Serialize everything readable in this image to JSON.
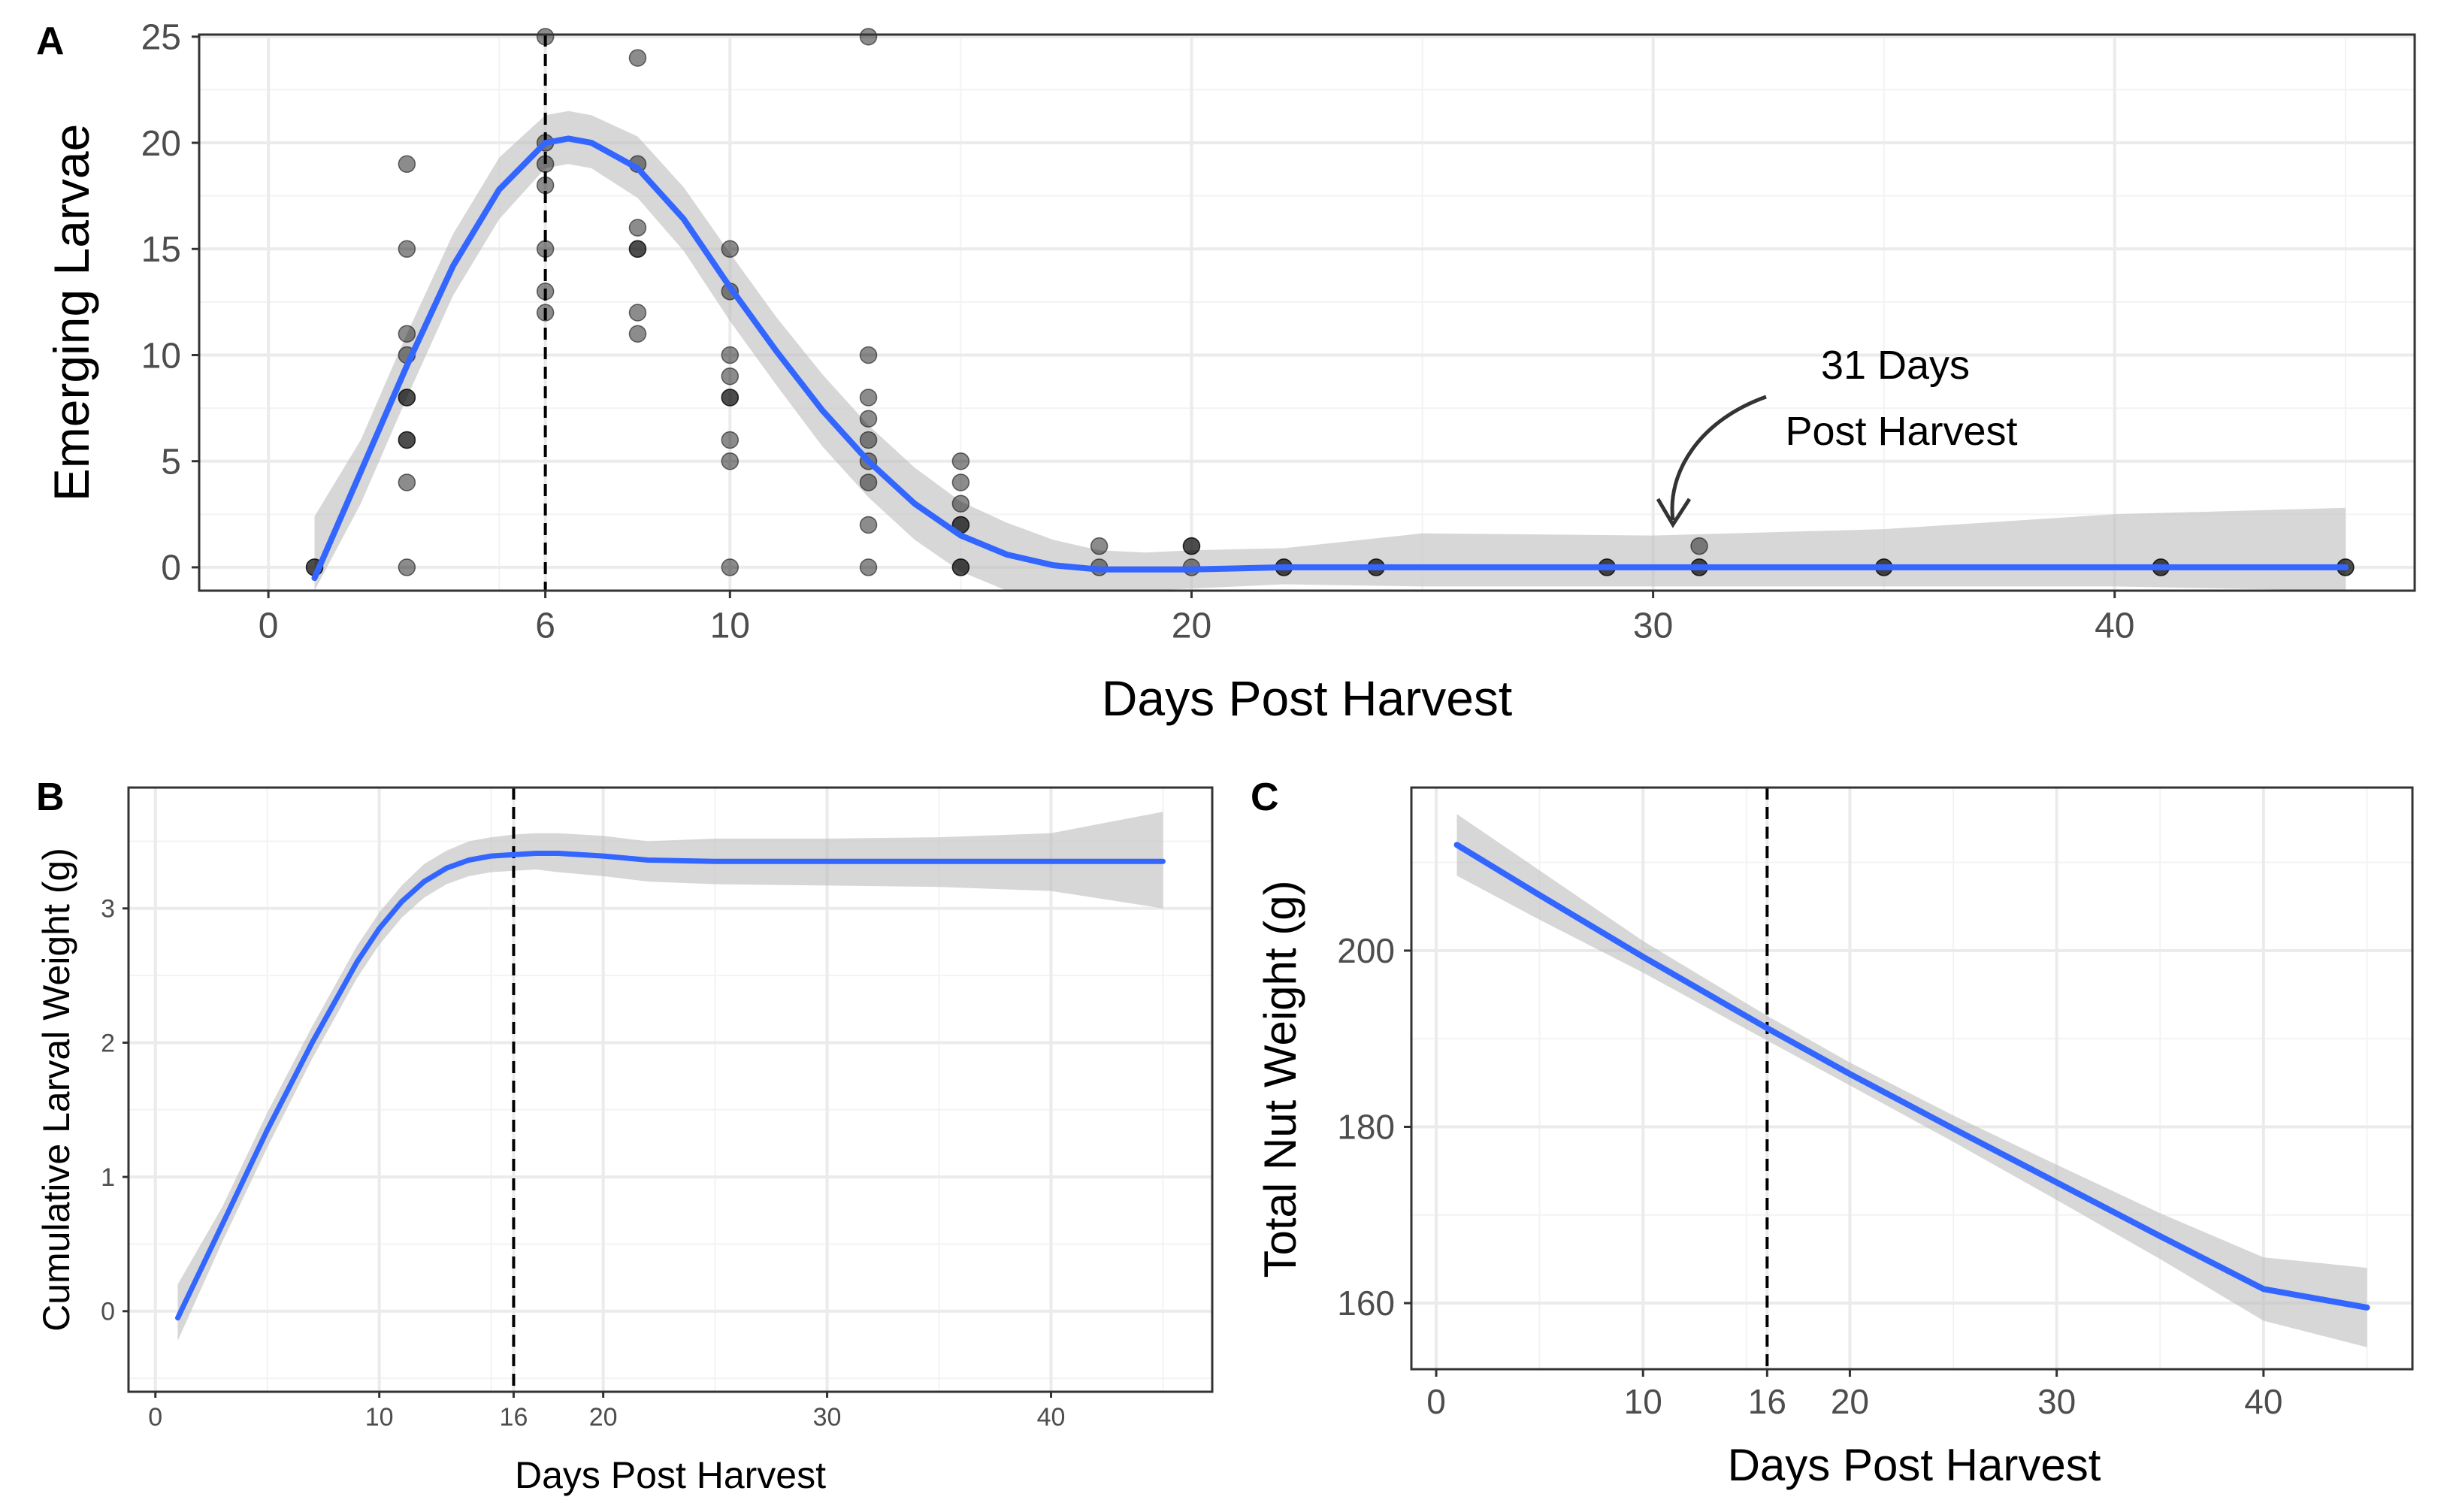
{
  "colors": {
    "smooth": "#3366FF",
    "ribbon": "#BEBEBE",
    "point": "#000000",
    "grid_major": "#EBEBEB",
    "grid_minor": "#F3F3F3",
    "panel_border": "#333333",
    "tick_text": "#4D4D4D"
  },
  "chart_data": [
    {
      "panel": "A",
      "type": "scatter",
      "xlabel": "Days Post Harvest",
      "ylabel": "Emerging Larvae",
      "xlim": [
        -1.5,
        46.5
      ],
      "ylim": [
        -1.1,
        25.1
      ],
      "xticks": [
        0,
        6,
        10,
        20,
        30,
        40
      ],
      "yticks": [
        0,
        5,
        10,
        15,
        20,
        25
      ],
      "vline": 6,
      "points": [
        {
          "x": 1,
          "y": 0
        },
        {
          "x": 1,
          "y": 0
        },
        {
          "x": 3,
          "y": 0
        },
        {
          "x": 3,
          "y": 4
        },
        {
          "x": 3,
          "y": 6
        },
        {
          "x": 3,
          "y": 6
        },
        {
          "x": 3,
          "y": 8
        },
        {
          "x": 3,
          "y": 8
        },
        {
          "x": 3,
          "y": 10
        },
        {
          "x": 3,
          "y": 11
        },
        {
          "x": 3,
          "y": 15
        },
        {
          "x": 3,
          "y": 19
        },
        {
          "x": 6,
          "y": 12
        },
        {
          "x": 6,
          "y": 13
        },
        {
          "x": 6,
          "y": 15
        },
        {
          "x": 6,
          "y": 18
        },
        {
          "x": 6,
          "y": 19
        },
        {
          "x": 6,
          "y": 20
        },
        {
          "x": 6,
          "y": 25
        },
        {
          "x": 8,
          "y": 11
        },
        {
          "x": 8,
          "y": 12
        },
        {
          "x": 8,
          "y": 15
        },
        {
          "x": 8,
          "y": 15
        },
        {
          "x": 8,
          "y": 16
        },
        {
          "x": 8,
          "y": 19
        },
        {
          "x": 8,
          "y": 24
        },
        {
          "x": 10,
          "y": 0
        },
        {
          "x": 10,
          "y": 5
        },
        {
          "x": 10,
          "y": 6
        },
        {
          "x": 10,
          "y": 8
        },
        {
          "x": 10,
          "y": 8
        },
        {
          "x": 10,
          "y": 9
        },
        {
          "x": 10,
          "y": 10
        },
        {
          "x": 10,
          "y": 13
        },
        {
          "x": 10,
          "y": 15
        },
        {
          "x": 13,
          "y": 0
        },
        {
          "x": 13,
          "y": 2
        },
        {
          "x": 13,
          "y": 4
        },
        {
          "x": 13,
          "y": 5
        },
        {
          "x": 13,
          "y": 6
        },
        {
          "x": 13,
          "y": 7
        },
        {
          "x": 13,
          "y": 8
        },
        {
          "x": 13,
          "y": 10
        },
        {
          "x": 13,
          "y": 25
        },
        {
          "x": 15,
          "y": 0
        },
        {
          "x": 15,
          "y": 0
        },
        {
          "x": 15,
          "y": 2
        },
        {
          "x": 15,
          "y": 2
        },
        {
          "x": 15,
          "y": 3
        },
        {
          "x": 15,
          "y": 4
        },
        {
          "x": 15,
          "y": 5
        },
        {
          "x": 18,
          "y": 0
        },
        {
          "x": 18,
          "y": 1
        },
        {
          "x": 20,
          "y": 0
        },
        {
          "x": 20,
          "y": 1
        },
        {
          "x": 20,
          "y": 1
        },
        {
          "x": 22,
          "y": 0
        },
        {
          "x": 22,
          "y": 0
        },
        {
          "x": 24,
          "y": 0
        },
        {
          "x": 24,
          "y": 0
        },
        {
          "x": 29,
          "y": 0
        },
        {
          "x": 29,
          "y": 0
        },
        {
          "x": 31,
          "y": 0
        },
        {
          "x": 31,
          "y": 0
        },
        {
          "x": 31,
          "y": 1
        },
        {
          "x": 35,
          "y": 0
        },
        {
          "x": 35,
          "y": 0
        },
        {
          "x": 41,
          "y": 0
        },
        {
          "x": 41,
          "y": 0
        },
        {
          "x": 45,
          "y": 0
        },
        {
          "x": 45,
          "y": 0
        }
      ],
      "smooth": {
        "x": [
          1,
          2,
          3,
          4,
          5,
          6,
          6.5,
          7,
          8,
          9,
          10,
          11,
          12,
          13,
          14,
          15,
          16,
          17,
          18,
          19,
          20,
          22,
          25,
          30,
          35,
          40,
          45
        ],
        "y": [
          -0.5,
          4.5,
          9.5,
          14.2,
          17.8,
          20.0,
          20.2,
          20.0,
          18.8,
          16.4,
          13.2,
          10.2,
          7.4,
          5.0,
          3.0,
          1.5,
          0.6,
          0.1,
          -0.1,
          -0.1,
          -0.1,
          0.0,
          0.0,
          0.0,
          0.0,
          0.0,
          0.0
        ],
        "lower": [
          -1.3,
          3.0,
          8.0,
          12.8,
          16.4,
          18.8,
          19.0,
          18.8,
          17.4,
          14.9,
          11.6,
          8.6,
          5.7,
          3.3,
          1.3,
          -0.2,
          -1.3,
          -1.3,
          -1.3,
          -1.2,
          -1.0,
          -0.8,
          -0.9,
          -0.9,
          -0.9,
          -0.9,
          -1.2
        ],
        "upper": [
          2.4,
          6.0,
          11.0,
          15.7,
          19.3,
          21.3,
          21.5,
          21.3,
          20.3,
          17.9,
          14.8,
          11.8,
          9.1,
          6.7,
          4.7,
          3.1,
          2.1,
          1.3,
          0.8,
          0.7,
          0.8,
          0.9,
          1.6,
          1.5,
          1.8,
          2.5,
          2.8
        ]
      },
      "annotation": {
        "line1": "31 Days",
        "line2": "Post Harvest",
        "target_x": 31,
        "target_y": 1
      }
    },
    {
      "panel": "B",
      "type": "line",
      "xlabel": "Days Post Harvest",
      "ylabel": "Cumulative Larval Weight (g)",
      "xlim": [
        -1.2,
        47.2
      ],
      "ylim": [
        -0.6,
        3.9
      ],
      "xticks": [
        0,
        10,
        16,
        20,
        30,
        40
      ],
      "yticks": [
        0,
        1,
        2,
        3
      ],
      "vline": 16,
      "smooth": {
        "x": [
          1,
          3,
          5,
          7,
          9,
          10,
          11,
          12,
          13,
          14,
          15,
          16,
          17,
          18,
          20,
          22,
          25,
          30,
          35,
          40,
          45
        ],
        "y": [
          -0.05,
          0.65,
          1.35,
          2.0,
          2.6,
          2.85,
          3.05,
          3.2,
          3.3,
          3.36,
          3.39,
          3.4,
          3.41,
          3.41,
          3.39,
          3.36,
          3.35,
          3.35,
          3.35,
          3.35,
          3.35
        ],
        "lower": [
          -0.22,
          0.52,
          1.22,
          1.88,
          2.48,
          2.73,
          2.93,
          3.08,
          3.18,
          3.24,
          3.27,
          3.28,
          3.29,
          3.27,
          3.24,
          3.2,
          3.18,
          3.17,
          3.16,
          3.13,
          3.0
        ],
        "upper": [
          0.2,
          0.78,
          1.48,
          2.12,
          2.72,
          2.97,
          3.17,
          3.33,
          3.43,
          3.5,
          3.53,
          3.55,
          3.56,
          3.56,
          3.54,
          3.5,
          3.52,
          3.52,
          3.53,
          3.56,
          3.72
        ]
      }
    },
    {
      "panel": "C",
      "type": "line",
      "xlabel": "Days Post Harvest",
      "ylabel": "Total Nut Weight (g)",
      "xlim": [
        -1.2,
        47.2
      ],
      "ylim": [
        152.5,
        218.5
      ],
      "xticks": [
        0,
        10,
        16,
        20,
        30,
        40
      ],
      "yticks": [
        160,
        180,
        200
      ],
      "vline": 16,
      "smooth": {
        "x": [
          1,
          5,
          10,
          16,
          20,
          25,
          30,
          35,
          40,
          45
        ],
        "y": [
          212,
          206.3,
          199.3,
          191.2,
          186.0,
          179.8,
          173.7,
          167.6,
          161.6,
          159.5
        ],
        "lower": [
          208.5,
          203.5,
          197.5,
          189.8,
          184.7,
          178.3,
          171.7,
          165.0,
          158.0,
          155.0
        ],
        "upper": [
          215.5,
          209.1,
          201.1,
          192.6,
          187.3,
          181.3,
          175.7,
          170.2,
          165.2,
          164.0
        ]
      }
    }
  ]
}
